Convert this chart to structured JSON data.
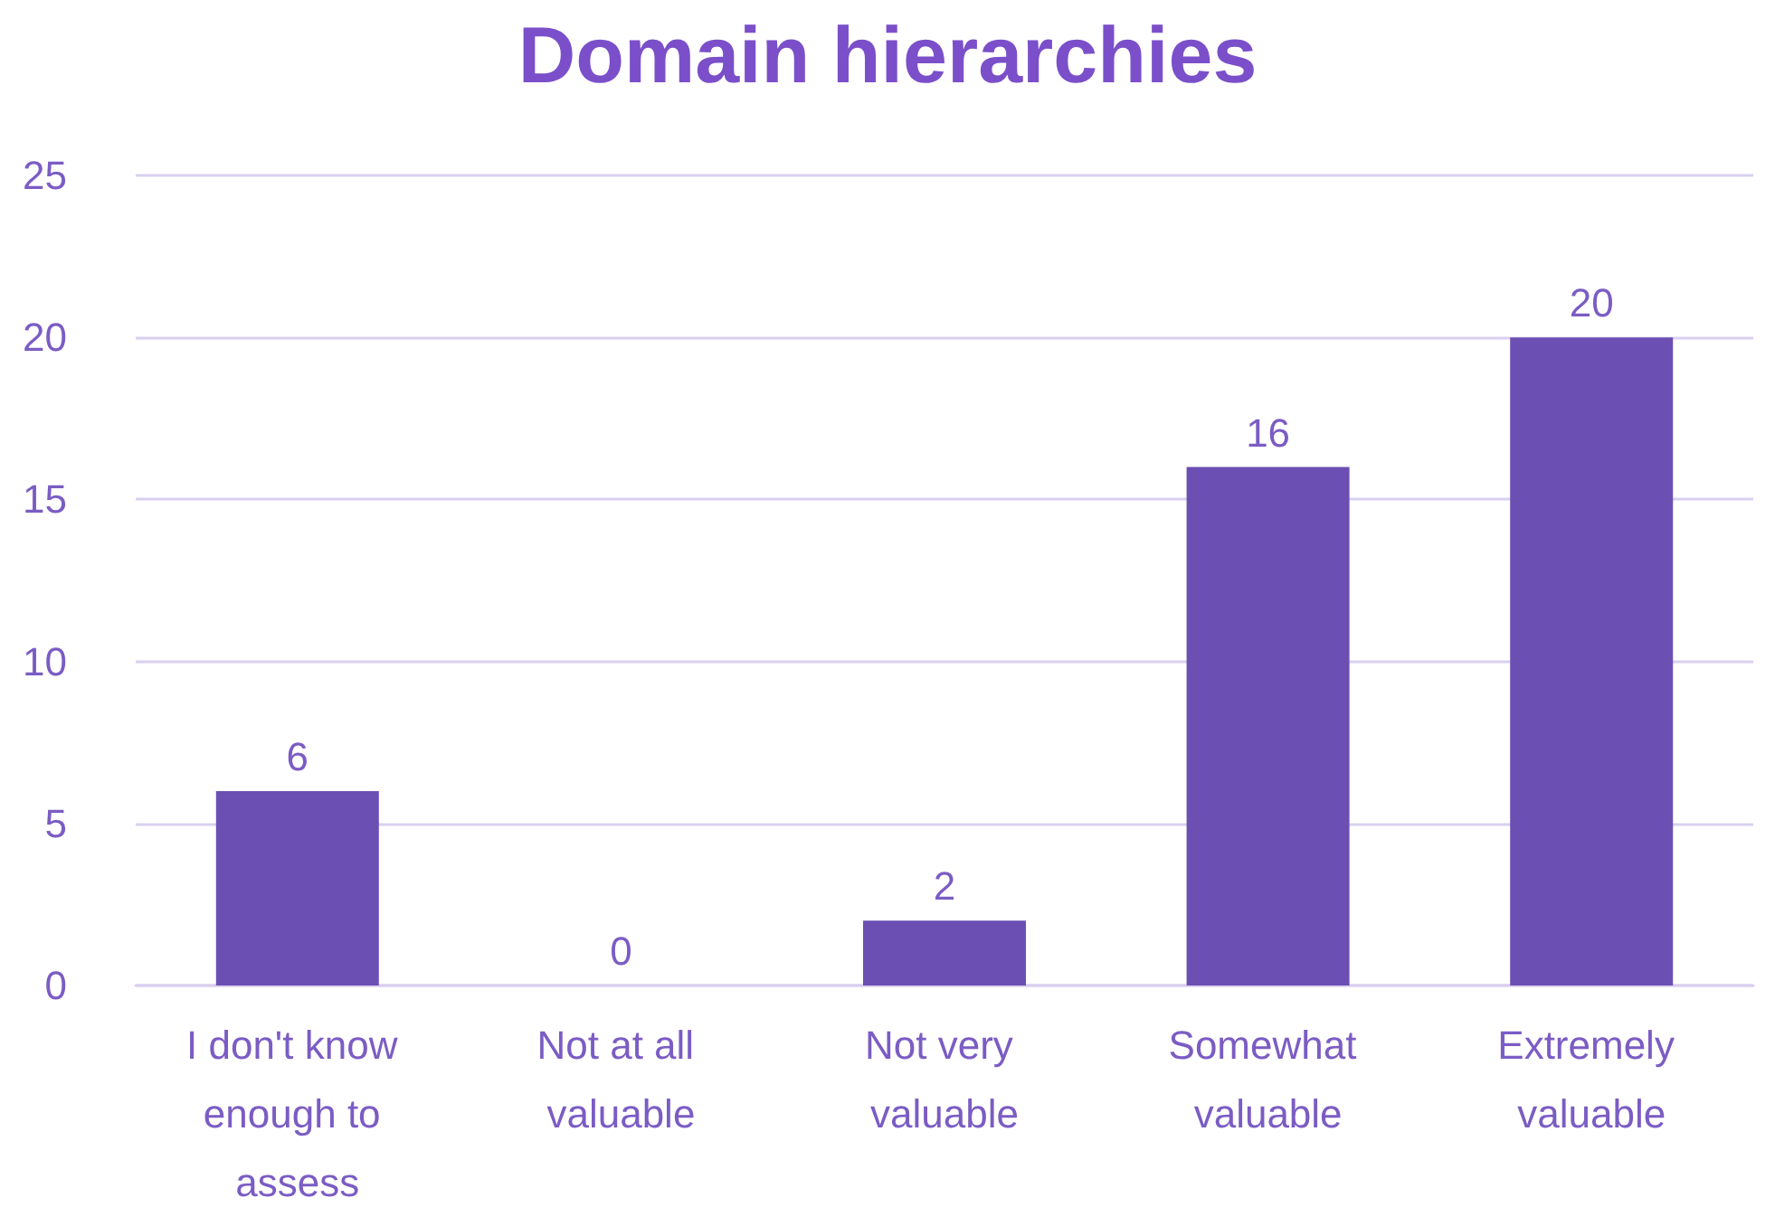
{
  "chart_data": {
    "type": "bar",
    "title": "Domain hierarchies",
    "categories": [
      "I don't know enough to assess",
      "Not at all valuable",
      "Not very valuable",
      "Somewhat valuable",
      "Extremely valuable"
    ],
    "values": [
      6,
      0,
      2,
      16,
      20
    ],
    "color": "#6b4fb3",
    "ylim": [
      0,
      25
    ],
    "yticks": [
      0,
      5,
      10,
      15,
      20,
      25
    ],
    "grid": "y",
    "data_labels": true
  }
}
